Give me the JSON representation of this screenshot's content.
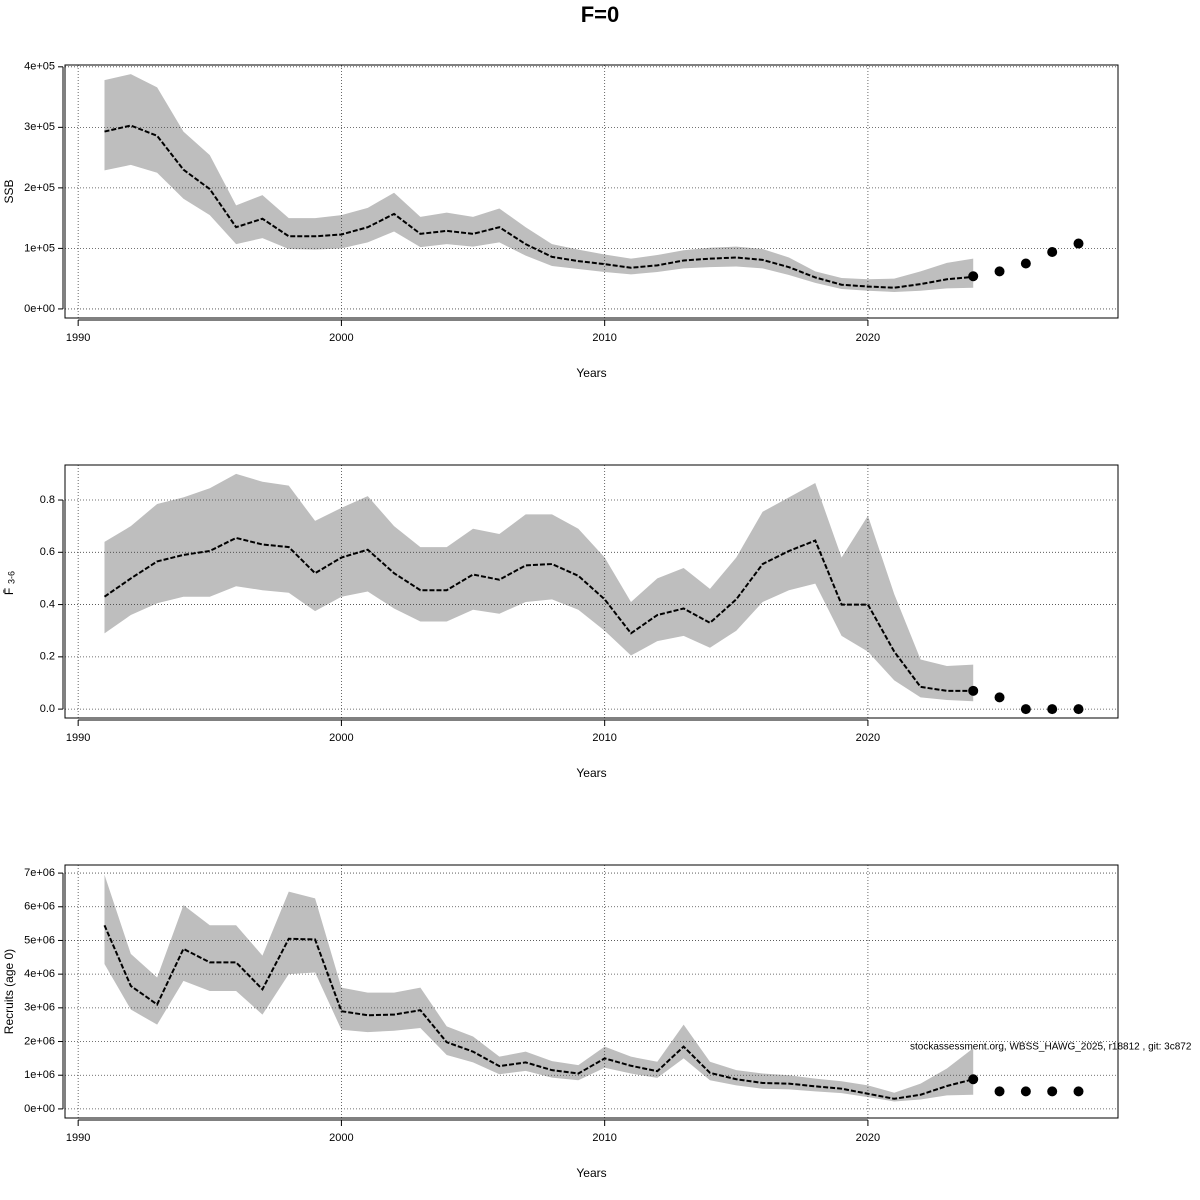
{
  "title": "F=0",
  "footnote": "stockassessment.org, WBSS_HAWG_2025, r18812 , git: 3c872",
  "chart_data": [
    {
      "type": "band-line",
      "xlabel": "Years",
      "ylabel": "SSB",
      "xlim": [
        1989.5,
        2029.5
      ],
      "xticks": [
        1990,
        2000,
        2010,
        2020
      ],
      "ylim": [
        -15000,
        403000
      ],
      "yticks": [
        {
          "value": 0,
          "label": "0e+00"
        },
        {
          "value": 100000,
          "label": "1e+05"
        },
        {
          "value": 200000,
          "label": "2e+05"
        },
        {
          "value": 300000,
          "label": "3e+05"
        },
        {
          "value": 400000,
          "label": "4e+05"
        }
      ],
      "grid": true,
      "line_color": "#000000",
      "band_color": "#bebebe",
      "x": [
        1991,
        1992,
        1993,
        1994,
        1995,
        1996,
        1997,
        1998,
        1999,
        2000,
        2001,
        2002,
        2003,
        2004,
        2005,
        2006,
        2007,
        2008,
        2009,
        2010,
        2011,
        2012,
        2013,
        2014,
        2015,
        2016,
        2017,
        2018,
        2019,
        2020,
        2021,
        2022,
        2023,
        2024
      ],
      "values": [
        293000,
        303000,
        286000,
        230000,
        198000,
        135000,
        149000,
        120000,
        120000,
        123000,
        135000,
        157000,
        124000,
        129000,
        124000,
        135000,
        107000,
        86000,
        79000,
        74000,
        68000,
        72000,
        80000,
        83000,
        85000,
        81000,
        69000,
        52000,
        40000,
        37000,
        35000,
        41000,
        49000,
        53000
      ],
      "upper": [
        378000,
        388000,
        366000,
        293000,
        254000,
        171000,
        188000,
        150000,
        150000,
        155000,
        167000,
        192000,
        152000,
        159000,
        152000,
        166000,
        135000,
        107000,
        98000,
        90000,
        83000,
        89000,
        97000,
        101000,
        103000,
        99000,
        85000,
        62000,
        51000,
        49000,
        50000,
        62000,
        76000,
        83000
      ],
      "lower": [
        229000,
        238000,
        225000,
        182000,
        155000,
        107000,
        117000,
        99000,
        98000,
        100000,
        110000,
        128000,
        102000,
        107000,
        103000,
        110000,
        88000,
        71000,
        66000,
        61000,
        57000,
        61000,
        67000,
        69000,
        70000,
        67000,
        56000,
        43000,
        33000,
        30000,
        28000,
        30000,
        34000,
        35000
      ],
      "points_x": [
        2024,
        2025,
        2026,
        2027,
        2028
      ],
      "points": [
        54000,
        62000,
        75000,
        94000,
        108000
      ]
    },
    {
      "type": "band-line",
      "xlabel": "Years",
      "ylabel": "F̄",
      "ylabel_subscript": "3-6",
      "xlim": [
        1989.5,
        2029.5
      ],
      "xticks": [
        1990,
        2000,
        2010,
        2020
      ],
      "ylim": [
        -0.034,
        0.934
      ],
      "yticks": [
        {
          "value": 0,
          "label": "0.0"
        },
        0.2,
        0.4,
        0.6,
        0.8
      ],
      "grid": true,
      "line_color": "#000000",
      "band_color": "#bebebe",
      "x": [
        1991,
        1992,
        1993,
        1994,
        1995,
        1996,
        1997,
        1998,
        1999,
        2000,
        2001,
        2002,
        2003,
        2004,
        2005,
        2006,
        2007,
        2008,
        2009,
        2010,
        2011,
        2012,
        2013,
        2014,
        2015,
        2016,
        2017,
        2018,
        2019,
        2020,
        2021,
        2022,
        2023,
        2024
      ],
      "values": [
        0.43,
        0.5,
        0.565,
        0.59,
        0.605,
        0.655,
        0.63,
        0.62,
        0.52,
        0.58,
        0.61,
        0.52,
        0.455,
        0.455,
        0.515,
        0.495,
        0.55,
        0.555,
        0.51,
        0.42,
        0.29,
        0.36,
        0.385,
        0.33,
        0.42,
        0.555,
        0.605,
        0.645,
        0.4,
        0.4,
        0.22,
        0.085,
        0.07,
        0.07
      ],
      "upper": [
        0.64,
        0.7,
        0.785,
        0.81,
        0.845,
        0.9,
        0.87,
        0.855,
        0.72,
        0.77,
        0.815,
        0.7,
        0.62,
        0.62,
        0.69,
        0.67,
        0.745,
        0.745,
        0.69,
        0.58,
        0.41,
        0.5,
        0.54,
        0.46,
        0.58,
        0.755,
        0.81,
        0.865,
        0.58,
        0.74,
        0.44,
        0.19,
        0.165,
        0.17
      ],
      "lower": [
        0.29,
        0.36,
        0.405,
        0.43,
        0.43,
        0.47,
        0.455,
        0.445,
        0.375,
        0.43,
        0.45,
        0.385,
        0.335,
        0.335,
        0.38,
        0.365,
        0.41,
        0.42,
        0.38,
        0.3,
        0.205,
        0.26,
        0.28,
        0.235,
        0.3,
        0.41,
        0.455,
        0.48,
        0.28,
        0.22,
        0.11,
        0.045,
        0.035,
        0.03
      ],
      "points_x": [
        2024,
        2025,
        2026,
        2027,
        2028
      ],
      "points": [
        0.07,
        0.045,
        0,
        0,
        0
      ]
    },
    {
      "type": "band-line",
      "xlabel": "Years",
      "ylabel": "Recruits (age 0)",
      "xlim": [
        1989.5,
        2029.5
      ],
      "xticks": [
        1990,
        2000,
        2010,
        2020
      ],
      "ylim": [
        -270000,
        7240000
      ],
      "yticks": [
        {
          "value": 0,
          "label": "0e+00"
        },
        {
          "value": 1000000,
          "label": "1e+06"
        },
        {
          "value": 2000000,
          "label": "2e+06"
        },
        {
          "value": 3000000,
          "label": "3e+06"
        },
        {
          "value": 4000000,
          "label": "4e+06"
        },
        {
          "value": 5000000,
          "label": "5e+06"
        },
        {
          "value": 6000000,
          "label": "6e+06"
        },
        {
          "value": 7000000,
          "label": "7e+06"
        }
      ],
      "grid": true,
      "line_color": "#000000",
      "band_color": "#bebebe",
      "x": [
        1991,
        1992,
        1993,
        1994,
        1995,
        1996,
        1997,
        1998,
        1999,
        2000,
        2001,
        2002,
        2003,
        2004,
        2005,
        2006,
        2007,
        2008,
        2009,
        2010,
        2011,
        2012,
        2013,
        2014,
        2015,
        2016,
        2017,
        2018,
        2019,
        2020,
        2021,
        2022,
        2023,
        2024
      ],
      "values": [
        5450000,
        3650000,
        3100000,
        4750000,
        4350000,
        4350000,
        3550000,
        5050000,
        5030000,
        2900000,
        2780000,
        2800000,
        2930000,
        1980000,
        1700000,
        1270000,
        1380000,
        1150000,
        1050000,
        1500000,
        1280000,
        1120000,
        1850000,
        1070000,
        880000,
        770000,
        750000,
        670000,
        600000,
        450000,
        300000,
        420000,
        680000,
        880000
      ],
      "upper": [
        6950000,
        4600000,
        3900000,
        6050000,
        5450000,
        5450000,
        4550000,
        6450000,
        6250000,
        3600000,
        3450000,
        3450000,
        3600000,
        2450000,
        2150000,
        1550000,
        1700000,
        1420000,
        1300000,
        1850000,
        1550000,
        1400000,
        2500000,
        1400000,
        1150000,
        1050000,
        1000000,
        900000,
        820000,
        700000,
        480000,
        750000,
        1200000,
        1800000
      ],
      "lower": [
        4300000,
        2950000,
        2500000,
        3800000,
        3500000,
        3500000,
        2800000,
        4000000,
        4050000,
        2350000,
        2280000,
        2320000,
        2400000,
        1600000,
        1380000,
        1030000,
        1130000,
        930000,
        850000,
        1220000,
        1050000,
        920000,
        1500000,
        850000,
        700000,
        600000,
        580000,
        520000,
        470000,
        350000,
        220000,
        280000,
        400000,
        420000
      ],
      "points_x": [
        2024,
        2025,
        2026,
        2027,
        2028
      ],
      "points": [
        880000,
        520000,
        520000,
        520000,
        520000
      ]
    }
  ]
}
